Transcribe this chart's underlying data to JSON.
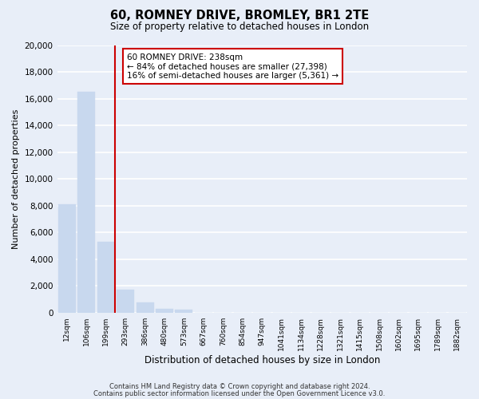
{
  "title": "60, ROMNEY DRIVE, BROMLEY, BR1 2TE",
  "subtitle": "Size of property relative to detached houses in London",
  "xlabel": "Distribution of detached houses by size in London",
  "ylabel": "Number of detached properties",
  "bar_labels": [
    "12sqm",
    "106sqm",
    "199sqm",
    "293sqm",
    "386sqm",
    "480sqm",
    "573sqm",
    "667sqm",
    "760sqm",
    "854sqm",
    "947sqm",
    "1041sqm",
    "1134sqm",
    "1228sqm",
    "1321sqm",
    "1415sqm",
    "1508sqm",
    "1602sqm",
    "1695sqm",
    "1789sqm",
    "1882sqm"
  ],
  "bar_values": [
    8100,
    16500,
    5300,
    1750,
    800,
    300,
    250,
    0,
    0,
    0,
    0,
    0,
    0,
    0,
    0,
    0,
    0,
    0,
    0,
    0,
    0
  ],
  "bar_color": "#c8d8ee",
  "vline_color": "#cc0000",
  "annotation_title": "60 ROMNEY DRIVE: 238sqm",
  "annotation_line1": "← 84% of detached houses are smaller (27,398)",
  "annotation_line2": "16% of semi-detached houses are larger (5,361) →",
  "annotation_box_facecolor": "#ffffff",
  "annotation_box_edgecolor": "#cc0000",
  "ylim": [
    0,
    20000
  ],
  "yticks": [
    0,
    2000,
    4000,
    6000,
    8000,
    10000,
    12000,
    14000,
    16000,
    18000,
    20000
  ],
  "footer1": "Contains HM Land Registry data © Crown copyright and database right 2024.",
  "footer2": "Contains public sector information licensed under the Open Government Licence v3.0.",
  "bg_color": "#e8eef8",
  "plot_bg_color": "#e8eef8",
  "grid_color": "#ffffff"
}
